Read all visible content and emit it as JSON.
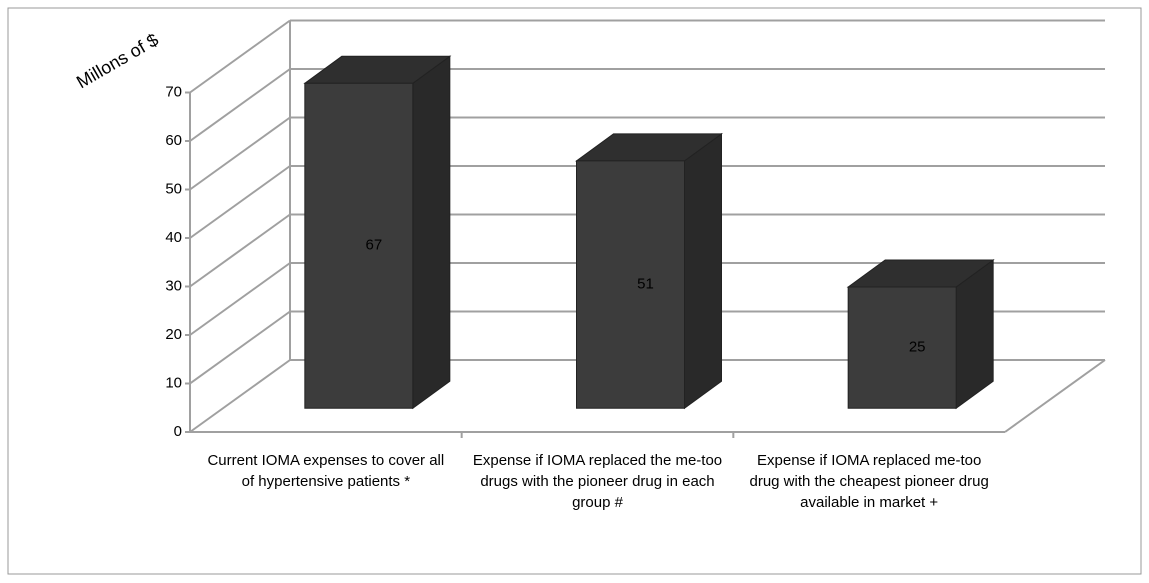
{
  "chart_data": {
    "type": "bar3d",
    "y_label": "Millons of $",
    "categories": [
      "Current IOMA expenses to cover all of hypertensive patients *",
      "Expense if IOMA replaced the me-too drugs with the pioneer drug in each group #",
      "Expense if IOMA replaced me-too drug with the cheapest pioneer drug available in market +"
    ],
    "values": [
      67,
      51,
      25
    ],
    "color": "#3c3c3c",
    "ylim": [
      0,
      70
    ],
    "yticks": [
      0,
      10,
      20,
      30,
      40,
      50,
      60,
      70
    ],
    "grid": true
  }
}
